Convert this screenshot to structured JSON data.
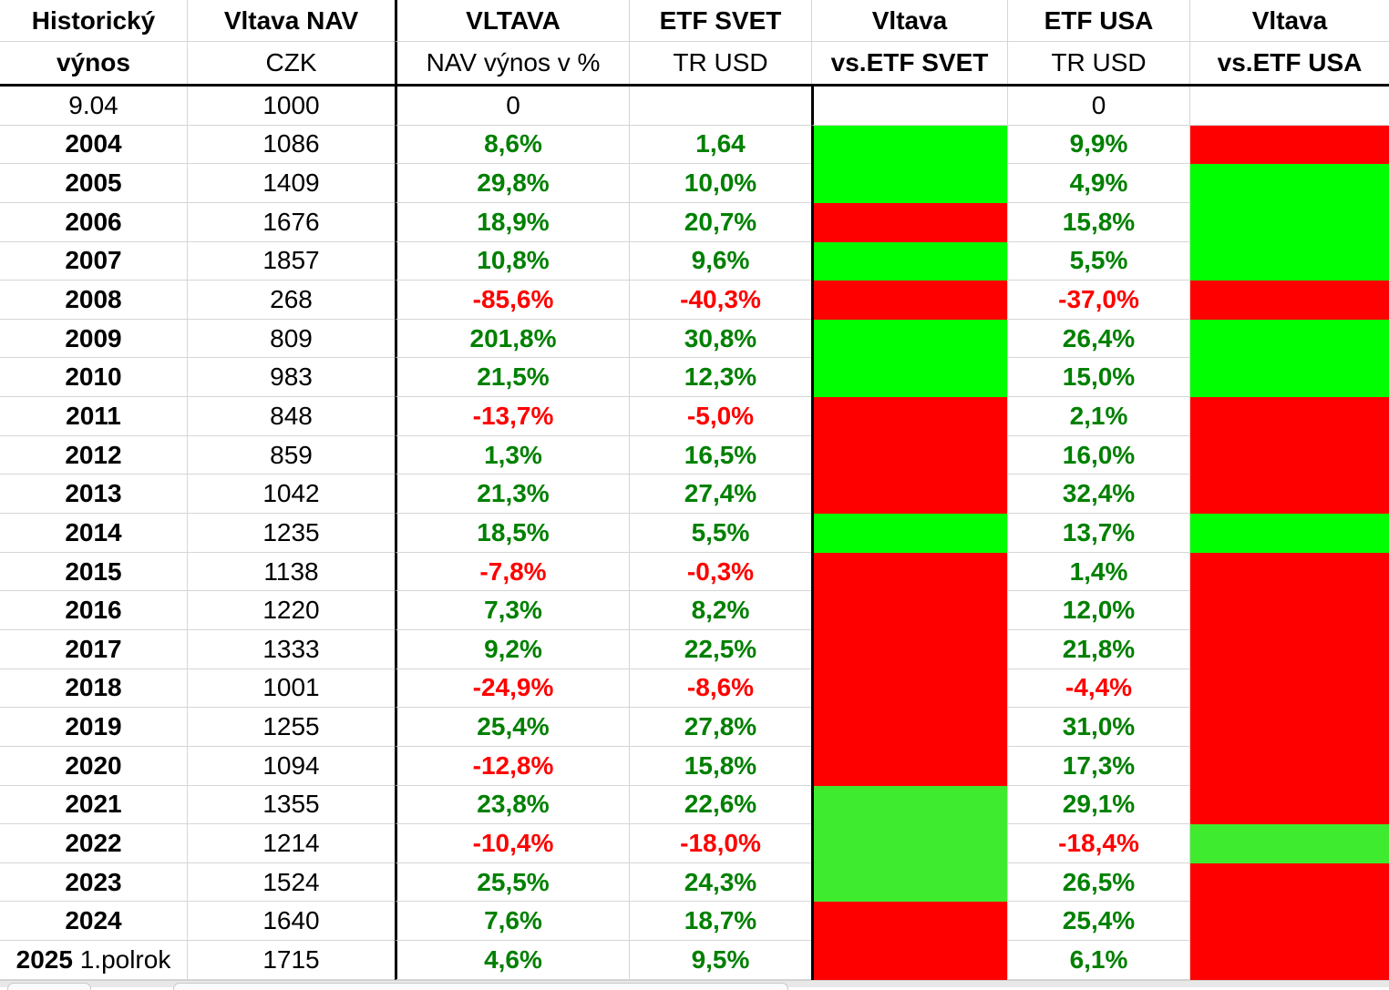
{
  "colors": {
    "fill_green": "#00FF00",
    "fill_light_green": "#3EEB2E",
    "fill_red": "#FF0000",
    "text_green": "#008000",
    "text_red": "#FF0000",
    "text_black": "#000000",
    "gridline": "#d6d6d6"
  },
  "header": {
    "col1_line1": "Historický",
    "col1_line2": "výnos",
    "col2_line1": "Vltava NAV",
    "col2_line2": "CZK",
    "col3_line1": "VLTAVA",
    "col3_line2": "NAV výnos v %",
    "col4_line1": "ETF SVET",
    "col4_line2": "TR USD",
    "col5_line1": "Vltava",
    "col5_line2": "vs.ETF SVET",
    "col6_line1": "ETF USA",
    "col6_line2": "TR USD",
    "col7_line1": "Vltava",
    "col7_line2": "vs.ETF USA"
  },
  "table": {
    "rows": [
      {
        "year": "9.04",
        "year_bold": false,
        "year_suffix": "",
        "nav": "1000",
        "vltava_pct": "0",
        "etf_svet": "",
        "svet_fill": "white",
        "etf_usa": "0",
        "usa_fill": "white"
      },
      {
        "year": "2004",
        "year_bold": true,
        "year_suffix": "",
        "nav": "1086",
        "vltava_pct": "8,6%",
        "etf_svet": "1,64",
        "svet_fill": "green",
        "etf_usa": "9,9%",
        "usa_fill": "red"
      },
      {
        "year": "2005",
        "year_bold": true,
        "year_suffix": "",
        "nav": "1409",
        "vltava_pct": "29,8%",
        "etf_svet": "10,0%",
        "svet_fill": "green",
        "etf_usa": "4,9%",
        "usa_fill": "green"
      },
      {
        "year": "2006",
        "year_bold": true,
        "year_suffix": "",
        "nav": "1676",
        "vltava_pct": "18,9%",
        "etf_svet": "20,7%",
        "svet_fill": "red",
        "etf_usa": "15,8%",
        "usa_fill": "green"
      },
      {
        "year": "2007",
        "year_bold": true,
        "year_suffix": "",
        "nav": "1857",
        "vltava_pct": "10,8%",
        "etf_svet": "9,6%",
        "svet_fill": "green",
        "etf_usa": "5,5%",
        "usa_fill": "green"
      },
      {
        "year": "2008",
        "year_bold": true,
        "year_suffix": "",
        "nav": "268",
        "vltava_pct": "-85,6%",
        "etf_svet": "-40,3%",
        "svet_fill": "red",
        "etf_usa": "-37,0%",
        "usa_fill": "red"
      },
      {
        "year": "2009",
        "year_bold": true,
        "year_suffix": "",
        "nav": "809",
        "vltava_pct": "201,8%",
        "etf_svet": "30,8%",
        "svet_fill": "green",
        "etf_usa": "26,4%",
        "usa_fill": "green"
      },
      {
        "year": "2010",
        "year_bold": true,
        "year_suffix": "",
        "nav": "983",
        "vltava_pct": "21,5%",
        "etf_svet": "12,3%",
        "svet_fill": "green",
        "etf_usa": "15,0%",
        "usa_fill": "green"
      },
      {
        "year": "2011",
        "year_bold": true,
        "year_suffix": "",
        "nav": "848",
        "vltava_pct": "-13,7%",
        "etf_svet": "-5,0%",
        "svet_fill": "red",
        "etf_usa": "2,1%",
        "usa_fill": "red"
      },
      {
        "year": "2012",
        "year_bold": true,
        "year_suffix": "",
        "nav": "859",
        "vltava_pct": "1,3%",
        "etf_svet": "16,5%",
        "svet_fill": "red",
        "etf_usa": "16,0%",
        "usa_fill": "red"
      },
      {
        "year": "2013",
        "year_bold": true,
        "year_suffix": "",
        "nav": "1042",
        "vltava_pct": "21,3%",
        "etf_svet": "27,4%",
        "svet_fill": "red",
        "etf_usa": "32,4%",
        "usa_fill": "red"
      },
      {
        "year": "2014",
        "year_bold": true,
        "year_suffix": "",
        "nav": "1235",
        "vltava_pct": "18,5%",
        "etf_svet": "5,5%",
        "svet_fill": "green",
        "etf_usa": "13,7%",
        "usa_fill": "green"
      },
      {
        "year": "2015",
        "year_bold": true,
        "year_suffix": "",
        "nav": "1138",
        "vltava_pct": "-7,8%",
        "etf_svet": "-0,3%",
        "svet_fill": "red",
        "etf_usa": "1,4%",
        "usa_fill": "red"
      },
      {
        "year": "2016",
        "year_bold": true,
        "year_suffix": "",
        "nav": "1220",
        "vltava_pct": "7,3%",
        "etf_svet": "8,2%",
        "svet_fill": "red",
        "etf_usa": "12,0%",
        "usa_fill": "red"
      },
      {
        "year": "2017",
        "year_bold": true,
        "year_suffix": "",
        "nav": "1333",
        "vltava_pct": "9,2%",
        "etf_svet": "22,5%",
        "svet_fill": "red",
        "etf_usa": "21,8%",
        "usa_fill": "red"
      },
      {
        "year": "2018",
        "year_bold": true,
        "year_suffix": "",
        "nav": "1001",
        "vltava_pct": "-24,9%",
        "etf_svet": "-8,6%",
        "svet_fill": "red",
        "etf_usa": "-4,4%",
        "usa_fill": "red"
      },
      {
        "year": "2019",
        "year_bold": true,
        "year_suffix": "",
        "nav": "1255",
        "vltava_pct": "25,4%",
        "etf_svet": "27,8%",
        "svet_fill": "red",
        "etf_usa": "31,0%",
        "usa_fill": "red"
      },
      {
        "year": "2020",
        "year_bold": true,
        "year_suffix": "",
        "nav": "1094",
        "vltava_pct": "-12,8%",
        "etf_svet": "15,8%",
        "svet_fill": "red",
        "etf_usa": "17,3%",
        "usa_fill": "red"
      },
      {
        "year": "2021",
        "year_bold": true,
        "year_suffix": "",
        "nav": "1355",
        "vltava_pct": "23,8%",
        "etf_svet": "22,6%",
        "svet_fill": "lightgreen",
        "etf_usa": "29,1%",
        "usa_fill": "red"
      },
      {
        "year": "2022",
        "year_bold": true,
        "year_suffix": "",
        "nav": "1214",
        "vltava_pct": "-10,4%",
        "etf_svet": "-18,0%",
        "svet_fill": "lightgreen",
        "etf_usa": "-18,4%",
        "usa_fill": "lightgreen"
      },
      {
        "year": "2023",
        "year_bold": true,
        "year_suffix": "",
        "nav": "1524",
        "vltava_pct": "25,5%",
        "etf_svet": "24,3%",
        "svet_fill": "lightgreen",
        "etf_usa": "26,5%",
        "usa_fill": "red"
      },
      {
        "year": "2024",
        "year_bold": true,
        "year_suffix": "",
        "nav": "1640",
        "vltava_pct": "7,6%",
        "etf_svet": "18,7%",
        "svet_fill": "red",
        "etf_usa": "25,4%",
        "usa_fill": "red"
      },
      {
        "year": "2025",
        "year_bold": true,
        "year_suffix": "1.polrok",
        "nav": "1715",
        "vltava_pct": "4,6%",
        "etf_svet": "9,5%",
        "svet_fill": "red",
        "etf_usa": "6,1%",
        "usa_fill": "red"
      }
    ]
  }
}
